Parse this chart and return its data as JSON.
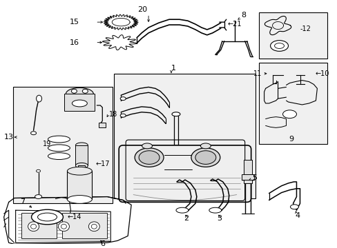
{
  "background_color": "#ffffff",
  "fig_width": 4.89,
  "fig_height": 3.6,
  "dpi": 100,
  "black": "#000000",
  "gray_fill": "#e8e8e8",
  "light_gray": "#d0d0d0"
}
